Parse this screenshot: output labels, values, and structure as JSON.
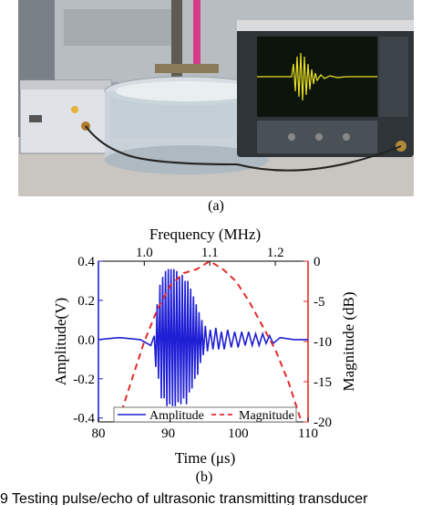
{
  "figure": {
    "label_a": "(a)",
    "label_b": "(b)",
    "caption": "9    Testing pulse/echo of ultrasonic transmitting transducer"
  },
  "photo": {
    "description_icon": "lab-photo-icon",
    "colors": {
      "bench": "#c9c6c1",
      "scope_body": "#2f3438",
      "scope_screen": "#0c140c",
      "waveform": "#e8e023",
      "pulser": "#dfe2e6"
    }
  },
  "chart_data": {
    "type": "line",
    "top_xlabel": "Frequency (MHz)",
    "top_xticks": [
      "1.0",
      "1.1",
      "1.2"
    ],
    "top_xlim": [
      0.93,
      1.25
    ],
    "xlabel": "Time (μs)",
    "xticks": [
      "80",
      "90",
      "100",
      "110"
    ],
    "xlim": [
      80,
      110
    ],
    "ylabel": "Amplitude(V)",
    "yticks": [
      "0.4",
      "0.2",
      "0.0",
      "-0.2",
      "-0.4"
    ],
    "ylim": [
      -0.42,
      0.4
    ],
    "y2label": "Magnitude (dB)",
    "y2ticks": [
      "0",
      "-5",
      "-10",
      "-15",
      "-20"
    ],
    "y2lim": [
      -20,
      0
    ],
    "legend": "bottom",
    "series": [
      {
        "name": "Amplitude",
        "axis": "left",
        "color": "#1f1fd6",
        "style": "solid",
        "x": [
          80,
          83,
          86,
          87.5,
          88.0,
          88.2,
          88.4,
          88.6,
          88.8,
          89.0,
          89.2,
          89.4,
          89.6,
          89.8,
          90.0,
          90.2,
          90.4,
          90.6,
          90.8,
          91.0,
          91.2,
          91.4,
          91.6,
          91.8,
          92.0,
          92.2,
          92.4,
          92.6,
          92.8,
          93.0,
          93.2,
          93.4,
          93.6,
          93.8,
          94.0,
          94.2,
          94.4,
          94.6,
          94.8,
          95.0,
          95.3,
          95.6,
          96.0,
          96.4,
          96.8,
          97.2,
          97.6,
          98.0,
          98.5,
          99.0,
          99.5,
          100.0,
          100.5,
          101.0,
          101.5,
          102.0,
          102.5,
          103.0,
          103.5,
          104.0,
          104.5,
          105.0,
          106,
          108,
          110
        ],
        "y": [
          0.0,
          0.01,
          0.0,
          -0.03,
          0.02,
          -0.14,
          0.18,
          -0.2,
          0.28,
          -0.3,
          0.32,
          -0.3,
          0.35,
          -0.34,
          0.36,
          -0.33,
          0.36,
          -0.34,
          0.36,
          -0.34,
          0.35,
          -0.32,
          0.32,
          -0.33,
          0.33,
          -0.3,
          0.3,
          -0.33,
          0.3,
          -0.27,
          0.26,
          -0.25,
          0.22,
          -0.2,
          0.18,
          -0.18,
          0.14,
          -0.12,
          0.1,
          -0.08,
          0.07,
          -0.06,
          0.05,
          -0.05,
          0.06,
          -0.05,
          0.04,
          -0.05,
          0.05,
          -0.04,
          0.04,
          -0.04,
          0.04,
          -0.03,
          0.04,
          -0.03,
          0.03,
          -0.03,
          0.03,
          -0.02,
          0.02,
          -0.02,
          0.01,
          0.0,
          0.0
        ]
      },
      {
        "name": "Magnitude",
        "axis": "right",
        "color": "#e32a2a",
        "style": "dashed",
        "x": [
          0.96,
          0.98,
          1.0,
          1.02,
          1.04,
          1.06,
          1.08,
          1.1,
          1.12,
          1.14,
          1.16,
          1.18,
          1.2,
          1.22,
          1.24
        ],
        "y": [
          -20,
          -15,
          -10,
          -6,
          -3,
          -1.5,
          -1,
          0,
          -1,
          -2.5,
          -5,
          -8,
          -11,
          -15,
          -20
        ]
      }
    ]
  }
}
